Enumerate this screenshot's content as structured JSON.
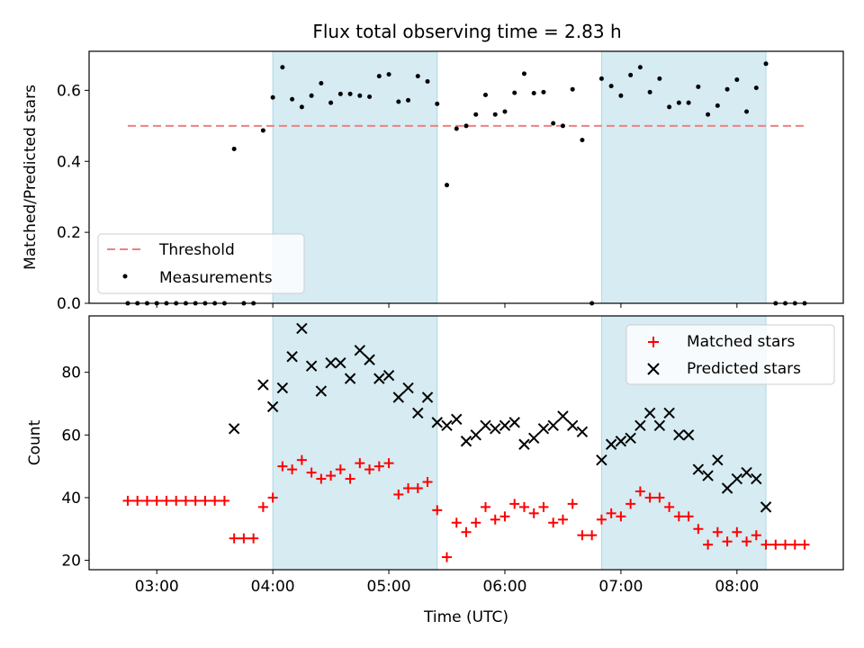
{
  "chart_data": [
    {
      "type": "scatter",
      "title": "Flux total observing time = 2.83 h",
      "ylabel": "Matched/Predicted stars",
      "xlim": [
        "02:25",
        "08:55"
      ],
      "ylim": [
        0,
        0.71
      ],
      "xticks": [
        "03:00",
        "04:00",
        "05:00",
        "06:00",
        "07:00",
        "08:00"
      ],
      "yticks": [
        "0.0",
        "0.2",
        "0.4",
        "0.6"
      ],
      "shaded_intervals": [
        [
          "04:00",
          "05:25"
        ],
        [
          "06:50",
          "08:15"
        ]
      ],
      "threshold": {
        "name": "Threshold",
        "x": [
          "02:45",
          "08:35"
        ],
        "y": 0.5,
        "color": "#f08080"
      },
      "series": [
        {
          "name": "Measurements",
          "color": "#000000",
          "points": [
            [
              "02:45",
              0
            ],
            [
              "02:50",
              0
            ],
            [
              "02:55",
              0
            ],
            [
              "03:00",
              0
            ],
            [
              "03:05",
              0
            ],
            [
              "03:10",
              0
            ],
            [
              "03:15",
              0
            ],
            [
              "03:20",
              0
            ],
            [
              "03:25",
              0
            ],
            [
              "03:30",
              0
            ],
            [
              "03:35",
              0
            ],
            [
              "03:40",
              0.435
            ],
            [
              "03:45",
              0
            ],
            [
              "03:50",
              0
            ],
            [
              "03:55",
              0.487
            ],
            [
              "04:00",
              0.58
            ],
            [
              "04:05",
              0.665
            ],
            [
              "04:10",
              0.575
            ],
            [
              "04:15",
              0.553
            ],
            [
              "04:20",
              0.585
            ],
            [
              "04:25",
              0.62
            ],
            [
              "04:30",
              0.565
            ],
            [
              "04:35",
              0.59
            ],
            [
              "04:40",
              0.59
            ],
            [
              "04:45",
              0.585
            ],
            [
              "04:50",
              0.582
            ],
            [
              "04:55",
              0.64
            ],
            [
              "05:00",
              0.645
            ],
            [
              "05:05",
              0.568
            ],
            [
              "05:10",
              0.572
            ],
            [
              "05:15",
              0.64
            ],
            [
              "05:20",
              0.625
            ],
            [
              "05:25",
              0.562
            ],
            [
              "05:30",
              0.333
            ],
            [
              "05:35",
              0.492
            ],
            [
              "05:40",
              0.5
            ],
            [
              "05:45",
              0.532
            ],
            [
              "05:50",
              0.587
            ],
            [
              "05:55",
              0.532
            ],
            [
              "06:00",
              0.54
            ],
            [
              "06:05",
              0.593
            ],
            [
              "06:10",
              0.647
            ],
            [
              "06:15",
              0.592
            ],
            [
              "06:20",
              0.595
            ],
            [
              "06:25",
              0.507
            ],
            [
              "06:30",
              0.5
            ],
            [
              "06:35",
              0.603
            ],
            [
              "06:40",
              0.46
            ],
            [
              "06:45",
              0
            ],
            [
              "06:50",
              0.633
            ],
            [
              "06:55",
              0.612
            ],
            [
              "07:00",
              0.585
            ],
            [
              "07:05",
              0.643
            ],
            [
              "07:10",
              0.665
            ],
            [
              "07:15",
              0.595
            ],
            [
              "07:20",
              0.633
            ],
            [
              "07:25",
              0.553
            ],
            [
              "07:30",
              0.565
            ],
            [
              "07:35",
              0.565
            ],
            [
              "07:40",
              0.61
            ],
            [
              "07:45",
              0.532
            ],
            [
              "07:50",
              0.557
            ],
            [
              "07:55",
              0.603
            ],
            [
              "08:00",
              0.63
            ],
            [
              "08:05",
              0.54
            ],
            [
              "08:10",
              0.607
            ],
            [
              "08:15",
              0.675
            ],
            [
              "08:20",
              0
            ],
            [
              "08:25",
              0
            ],
            [
              "08:30",
              0
            ],
            [
              "08:35",
              0
            ]
          ]
        }
      ],
      "legend": {
        "placement": "lower-left",
        "entries": [
          "Threshold",
          "Measurements"
        ]
      }
    },
    {
      "type": "scatter",
      "xlabel": "Time (UTC)",
      "ylabel": "Count",
      "xlim": [
        "02:25",
        "08:55"
      ],
      "ylim": [
        17,
        98
      ],
      "xticks": [
        "03:00",
        "04:00",
        "05:00",
        "06:00",
        "07:00",
        "08:00"
      ],
      "yticks": [
        "20",
        "40",
        "60",
        "80"
      ],
      "shaded_intervals": [
        [
          "04:00",
          "05:25"
        ],
        [
          "06:50",
          "08:15"
        ]
      ],
      "series": [
        {
          "name": "Matched stars",
          "marker": "plus",
          "color": "#ff0000",
          "points": [
            [
              "02:45",
              39
            ],
            [
              "02:50",
              39
            ],
            [
              "02:55",
              39
            ],
            [
              "03:00",
              39
            ],
            [
              "03:05",
              39
            ],
            [
              "03:10",
              39
            ],
            [
              "03:15",
              39
            ],
            [
              "03:20",
              39
            ],
            [
              "03:25",
              39
            ],
            [
              "03:30",
              39
            ],
            [
              "03:35",
              39
            ],
            [
              "03:40",
              27
            ],
            [
              "03:45",
              27
            ],
            [
              "03:50",
              27
            ],
            [
              "03:55",
              37
            ],
            [
              "04:00",
              40
            ],
            [
              "04:05",
              50
            ],
            [
              "04:10",
              49
            ],
            [
              "04:15",
              52
            ],
            [
              "04:20",
              48
            ],
            [
              "04:25",
              46
            ],
            [
              "04:30",
              47
            ],
            [
              "04:35",
              49
            ],
            [
              "04:40",
              46
            ],
            [
              "04:45",
              51
            ],
            [
              "04:50",
              49
            ],
            [
              "04:55",
              50
            ],
            [
              "05:00",
              51
            ],
            [
              "05:05",
              41
            ],
            [
              "05:10",
              43
            ],
            [
              "05:15",
              43
            ],
            [
              "05:20",
              45
            ],
            [
              "05:25",
              36
            ],
            [
              "05:30",
              21
            ],
            [
              "05:35",
              32
            ],
            [
              "05:40",
              29
            ],
            [
              "05:45",
              32
            ],
            [
              "05:50",
              37
            ],
            [
              "05:55",
              33
            ],
            [
              "06:00",
              34
            ],
            [
              "06:05",
              38
            ],
            [
              "06:10",
              37
            ],
            [
              "06:15",
              35
            ],
            [
              "06:20",
              37
            ],
            [
              "06:25",
              32
            ],
            [
              "06:30",
              33
            ],
            [
              "06:35",
              38
            ],
            [
              "06:40",
              28
            ],
            [
              "06:45",
              28
            ],
            [
              "06:50",
              33
            ],
            [
              "06:55",
              35
            ],
            [
              "07:00",
              34
            ],
            [
              "07:05",
              38
            ],
            [
              "07:10",
              42
            ],
            [
              "07:15",
              40
            ],
            [
              "07:20",
              40
            ],
            [
              "07:25",
              37
            ],
            [
              "07:30",
              34
            ],
            [
              "07:35",
              34
            ],
            [
              "07:40",
              30
            ],
            [
              "07:45",
              25
            ],
            [
              "07:50",
              29
            ],
            [
              "07:55",
              26
            ],
            [
              "08:00",
              29
            ],
            [
              "08:05",
              26
            ],
            [
              "08:10",
              28
            ],
            [
              "08:15",
              25
            ],
            [
              "08:20",
              25
            ],
            [
              "08:25",
              25
            ],
            [
              "08:30",
              25
            ],
            [
              "08:35",
              25
            ]
          ]
        },
        {
          "name": "Predicted stars",
          "marker": "x",
          "color": "#000000",
          "points": [
            [
              "03:40",
              62
            ],
            [
              "03:55",
              76
            ],
            [
              "04:00",
              69
            ],
            [
              "04:05",
              75
            ],
            [
              "04:10",
              85
            ],
            [
              "04:15",
              94
            ],
            [
              "04:20",
              82
            ],
            [
              "04:25",
              74
            ],
            [
              "04:30",
              83
            ],
            [
              "04:35",
              83
            ],
            [
              "04:40",
              78
            ],
            [
              "04:45",
              87
            ],
            [
              "04:50",
              84
            ],
            [
              "04:55",
              78
            ],
            [
              "05:00",
              79
            ],
            [
              "05:05",
              72
            ],
            [
              "05:10",
              75
            ],
            [
              "05:15",
              67
            ],
            [
              "05:20",
              72
            ],
            [
              "05:25",
              64
            ],
            [
              "05:30",
              63
            ],
            [
              "05:35",
              65
            ],
            [
              "05:40",
              58
            ],
            [
              "05:45",
              60
            ],
            [
              "05:50",
              63
            ],
            [
              "05:55",
              62
            ],
            [
              "06:00",
              63
            ],
            [
              "06:05",
              64
            ],
            [
              "06:10",
              57
            ],
            [
              "06:15",
              59
            ],
            [
              "06:20",
              62
            ],
            [
              "06:25",
              63
            ],
            [
              "06:30",
              66
            ],
            [
              "06:35",
              63
            ],
            [
              "06:40",
              61
            ],
            [
              "06:50",
              52
            ],
            [
              "06:55",
              57
            ],
            [
              "07:00",
              58
            ],
            [
              "07:05",
              59
            ],
            [
              "07:10",
              63
            ],
            [
              "07:15",
              67
            ],
            [
              "07:20",
              63
            ],
            [
              "07:25",
              67
            ],
            [
              "07:30",
              60
            ],
            [
              "07:35",
              60
            ],
            [
              "07:40",
              49
            ],
            [
              "07:45",
              47
            ],
            [
              "07:50",
              52
            ],
            [
              "07:55",
              43
            ],
            [
              "08:00",
              46
            ],
            [
              "08:05",
              48
            ],
            [
              "08:10",
              46
            ],
            [
              "08:15",
              37
            ]
          ]
        }
      ],
      "legend": {
        "placement": "upper-right",
        "entries": [
          "Matched stars",
          "Predicted stars"
        ]
      }
    }
  ],
  "colors": {
    "shade": "#add8e6",
    "threshold": "#f08080",
    "matched": "#ff0000",
    "predicted": "#000000",
    "measurements": "#000000"
  }
}
